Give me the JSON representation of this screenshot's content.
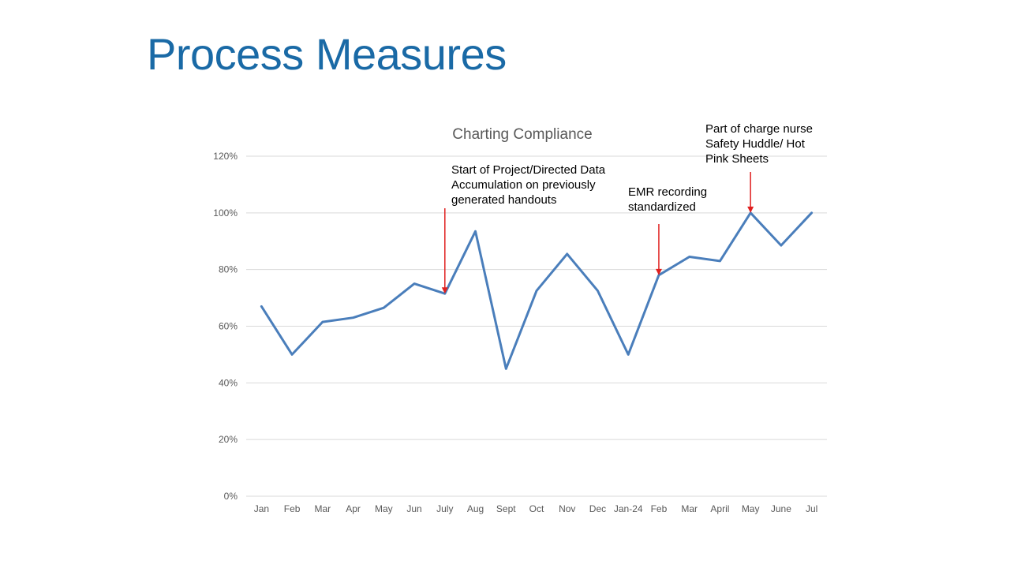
{
  "slide": {
    "title": "Process Measures"
  },
  "chart_data": {
    "type": "line",
    "title": "Charting Compliance",
    "xlabel": "",
    "ylabel": "",
    "categories": [
      "Jan",
      "Feb",
      "Mar",
      "Apr",
      "May",
      "Jun",
      "July",
      "Aug",
      "Sept",
      "Oct",
      "Nov",
      "Dec",
      "Jan-24",
      "Feb",
      "Mar",
      "April",
      "May",
      "June",
      "Jul"
    ],
    "series": [
      {
        "values": [
          67,
          50,
          61.5,
          63,
          66.5,
          75,
          71.5,
          93.5,
          45,
          72.5,
          85.5,
          72.5,
          50,
          78,
          84.5,
          83,
          100,
          88.5,
          100
        ]
      }
    ],
    "ylim": [
      0,
      120
    ],
    "yticks": [
      "0%",
      "20%",
      "40%",
      "60%",
      "80%",
      "100%",
      "120%"
    ],
    "grid": true,
    "legend": "none",
    "line_color": "#4a7ebb",
    "arrow_color": "#e0201f",
    "annotations": [
      {
        "category_index": 6,
        "lines": [
          "Start of Project/Directed Data",
          "Accumulation on previously",
          "generated handouts"
        ]
      },
      {
        "category_index": 13,
        "lines": [
          " EMR recording",
          "standardized"
        ]
      },
      {
        "category_index": 16,
        "lines": [
          "Part of charge nurse",
          "Safety Huddle/ Hot",
          "Pink Sheets"
        ]
      }
    ]
  }
}
